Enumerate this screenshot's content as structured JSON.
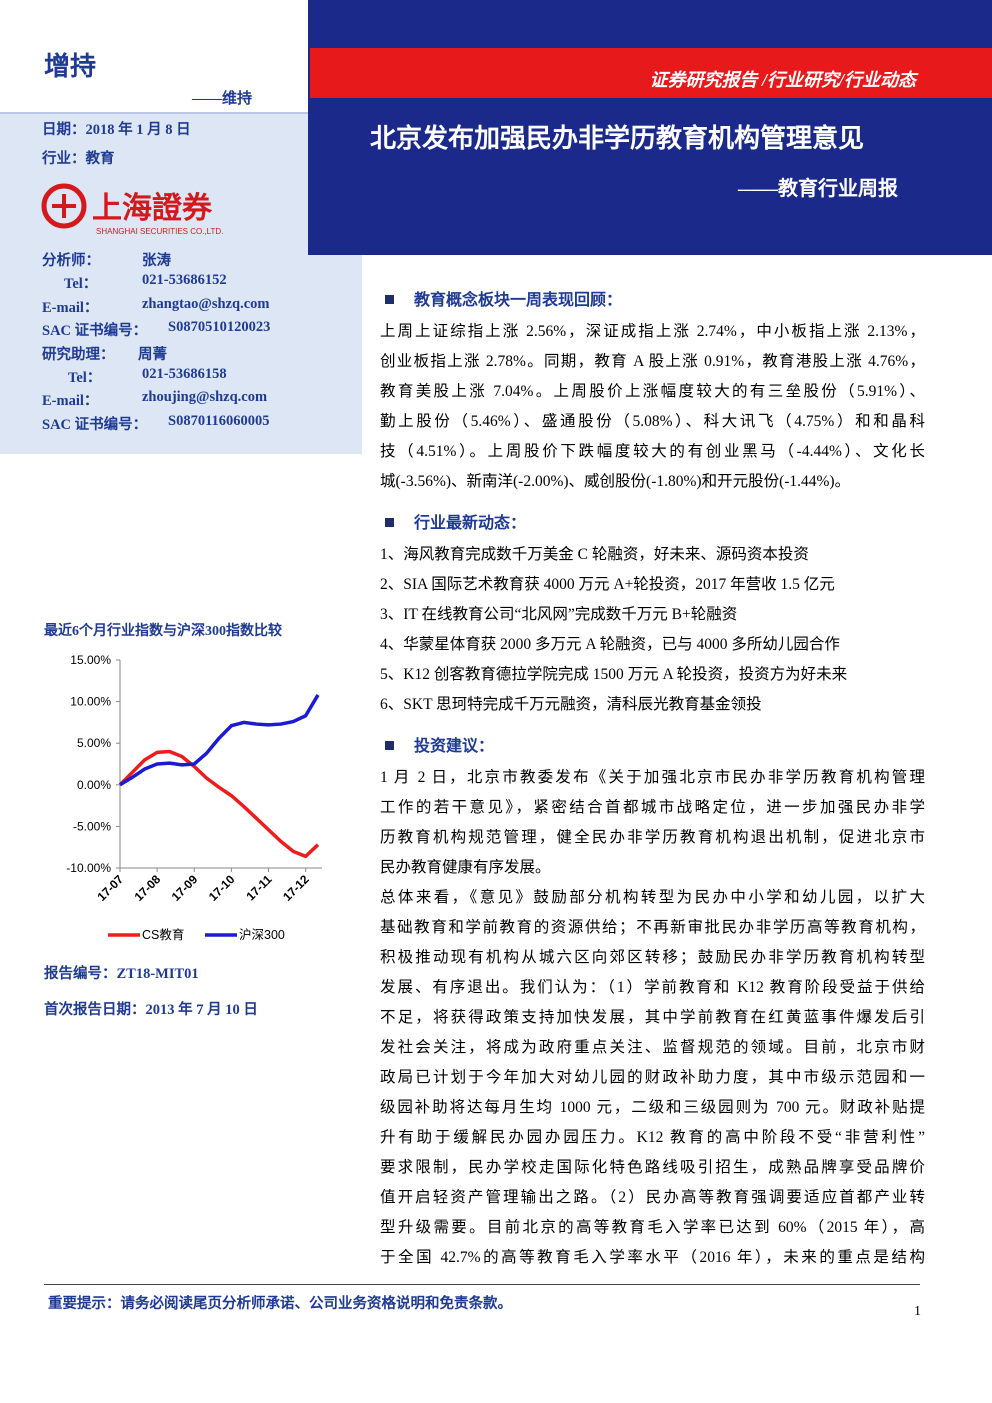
{
  "rating": {
    "current": "增持",
    "previous": "——维持"
  },
  "meta": {
    "date": "日期：2018 年 1 月 8 日",
    "industry": "行业：教育"
  },
  "logo": {
    "name": "上海證券",
    "english": "SHANGHAI SECURITIES CO.,LTD."
  },
  "contacts": [
    [
      "分析师：",
      "张涛"
    ],
    [
      "Tel：",
      "021-53686152"
    ],
    [
      "E-mail：",
      "zhangtao@shzq.com"
    ],
    [
      "SAC 证书编号：",
      "S0870510120023"
    ],
    [
      "研究助理：",
      "周菁"
    ],
    [
      "Tel：",
      "021-53686158"
    ],
    [
      "E-mail：",
      "zhoujing@shzq.com"
    ],
    [
      "SAC 证书编号：",
      "S0870116060005"
    ]
  ],
  "header": {
    "category": "证券研究报告 /行业研究/行业动态",
    "title": "北京发布加强民办非学历教育机构管理意见",
    "subtitle": "——教育行业周报"
  },
  "sections": [
    {
      "heading": "教育概念板块一周表现回顾：",
      "paragraphs": [
        [
          "上周上证综指上涨 2.56%，深证成指上涨 2.74%，中小板指上涨 2.13%，",
          "创业板指上涨 2.78%。同期，教育 A 股上涨 0.91%，教育港股上涨 4.76%，",
          "教育美股上涨 7.04%。上周股价上涨幅度较大的有三垒股份（5.91%）、",
          "勤上股份（5.46%）、盛通股份（5.08%）、科大讯飞（4.75%）和和晶科",
          "技（4.51%）。上周股价下跌幅度较大的有创业黑马（-4.44%）、文化长",
          "城(-3.56%)、新南洋(-2.00%)、威创股份(-1.80%)和开元股份(-1.44%)。"
        ]
      ]
    },
    {
      "heading": "行业最新动态：",
      "paragraphs": [
        [
          "1、海风教育完成数千万美金 C 轮融资，好未来、源码资本投资"
        ],
        [
          "2、SIA 国际艺术教育获 4000 万元 A+轮投资，2017 年营收 1.5 亿元"
        ],
        [
          "3、IT 在线教育公司“北风网”完成数千万元 B+轮融资"
        ],
        [
          "4、华蒙星体育获 2000 多万元 A 轮融资，已与 4000 多所幼儿园合作"
        ],
        [
          "5、K12 创客教育德拉学院完成 1500 万元 A 轮投资，投资方为好未来"
        ],
        [
          "6、SKT 思珂特完成千万元融资，清科辰光教育基金领投"
        ]
      ]
    },
    {
      "heading": "投资建议：",
      "paragraphs": [
        [
          "1 月 2 日，北京市教委发布《关于加强北京市民办非学历教育机构管理",
          "工作的若干意见》，紧密结合首都城市战略定位，进一步加强民办非学",
          "历教育机构规范管理，健全民办非学历教育机构退出机制，促进北京市",
          "民办教育健康有序发展。"
        ],
        [
          "总体来看，《意见》鼓励部分机构转型为民办中小学和幼儿园，以扩大",
          "基础教育和学前教育的资源供给；不再新审批民办非学历高等教育机构，",
          "积极推动现有机构从城六区向郊区转移；鼓励民办非学历教育机构转型",
          "发展、有序退出。我们认为：（1）学前教育和 K12 教育阶段受益于供给",
          "不足，将获得政策支持加快发展，其中学前教育在红黄蓝事件爆发后引",
          "发社会关注，将成为政府重点关注、监督规范的领域。目前，北京市财",
          "政局已计划于今年加大对幼儿园的财政补助力度，其中市级示范园和一",
          "级园补助将达每月生均 1000 元，二级和三级园则为 700 元。财政补贴提",
          "升有助于缓解民办园办园压力。K12 教育的高中阶段不受“非营利性”",
          "要求限制，民办学校走国际化特色路线吸引招生，成熟品牌享受品牌价",
          "值开启轻资产管理输出之路。（2）民办高等教育强调要适应首都产业转",
          "型升级需要。目前北京的高等教育毛入学率已达到 60%（2015 年），高",
          "于全国 42.7%的高等教育毛入学率水平（2016 年），未来的重点是结构"
        ]
      ]
    }
  ],
  "chart_data": {
    "type": "line",
    "title": "最近6个月行业指数与沪深300指数比较",
    "categories": [
      "17-07",
      null,
      null,
      "17-08",
      null,
      null,
      "17-09",
      null,
      null,
      "17-10",
      null,
      null,
      "17-11",
      null,
      null,
      "17-12",
      null
    ],
    "series": [
      {
        "name": "CS教育",
        "color": "#ee1c1c",
        "values": [
          0,
          1.5,
          3.0,
          3.9,
          4.0,
          3.4,
          2.2,
          0.8,
          -0.3,
          -1.3,
          -2.6,
          -4.0,
          -5.4,
          -6.8,
          -8.0,
          -8.6,
          -7.2
        ]
      },
      {
        "name": "沪深300",
        "color": "#1b1bd6",
        "values": [
          0,
          0.9,
          1.9,
          2.5,
          2.6,
          2.4,
          2.5,
          3.8,
          5.6,
          7.1,
          7.5,
          7.3,
          7.2,
          7.3,
          7.6,
          8.3,
          10.8
        ]
      }
    ],
    "ylim": [
      -10,
      15
    ],
    "yticks": [
      {
        "value": 15,
        "label": "15.00%"
      },
      {
        "value": 10,
        "label": "10.00%"
      },
      {
        "value": 5,
        "label": "5.00%"
      },
      {
        "value": 0,
        "label": "0.00%"
      },
      {
        "value": -5,
        "label": "-5.00%"
      },
      {
        "value": -10,
        "label": "-10.00%"
      }
    ],
    "legend": "bottom"
  },
  "report": {
    "number": "报告编号：ZT18-MIT01",
    "first_date": "首次报告日期：2013 年 7 月 10 日"
  },
  "footer": {
    "notice": "重要提示：请务必阅读尾页分析师承诺、公司业务资格说明和免责条款。",
    "page": "1"
  }
}
